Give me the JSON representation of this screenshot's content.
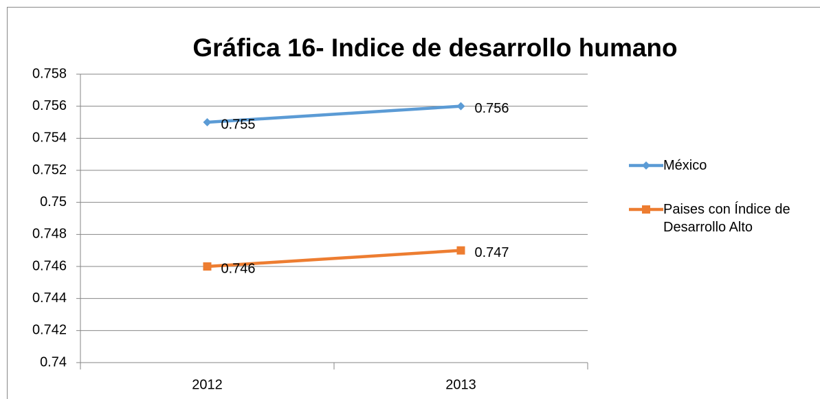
{
  "chart_data": {
    "type": "line",
    "title": "Gráfica 16- Indice de desarrollo humano",
    "categories": [
      "2012",
      "2013"
    ],
    "series": [
      {
        "name": "México",
        "color": "#5b9bd5",
        "marker": "diamond",
        "values": [
          0.755,
          0.756
        ]
      },
      {
        "name": "Paises con Índice de Desarrollo Alto",
        "color": "#ed7d31",
        "marker": "square",
        "values": [
          0.746,
          0.747
        ]
      }
    ],
    "ylim": [
      0.74,
      0.758
    ],
    "yticks": [
      0.74,
      0.742,
      0.744,
      0.746,
      0.748,
      0.75,
      0.752,
      0.754,
      0.756,
      0.758
    ],
    "grid": true,
    "legend": "right"
  }
}
